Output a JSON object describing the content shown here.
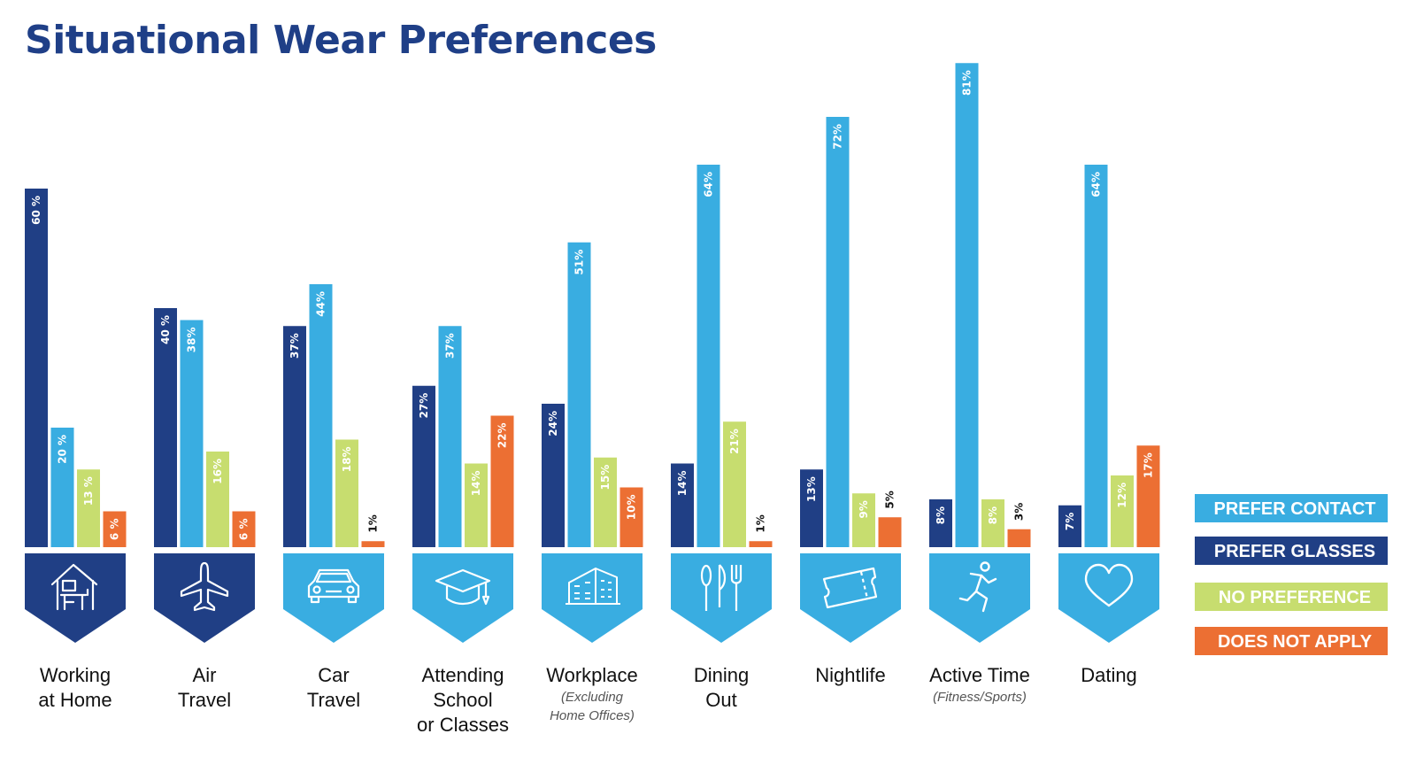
{
  "title": "Situational Wear Preferences",
  "colors": {
    "prefer_contact": "#39ade1",
    "prefer_glasses": "#203f85",
    "no_preference": "#c7dd6f",
    "does_not_apply": "#ec6f33",
    "title": "#1f3f87"
  },
  "legend": [
    {
      "label": "PREFER CONTACT",
      "color": "#39ade1",
      "series": "prefer_contact"
    },
    {
      "label": "PREFER GLASSES",
      "color": "#203f85",
      "series": "prefer_glasses"
    },
    {
      "label": "NO PREFERENCE",
      "color": "#c7dd6f",
      "series": "no_preference"
    },
    {
      "label": "DOES NOT APPLY",
      "color": "#ec6f33",
      "series": "does_not_apply"
    }
  ],
  "chart_data": {
    "type": "bar",
    "title": "Situational Wear Preferences",
    "legend_position": "right",
    "grid": false,
    "ylim": [
      0,
      81
    ],
    "series_order": [
      "prefer_glasses",
      "prefer_contact",
      "no_preference",
      "does_not_apply"
    ],
    "categories": [
      {
        "lines": [
          "Working",
          "at Home"
        ],
        "sub": [],
        "icon": "home-office-icon",
        "icon_color": "#203f85",
        "values": {
          "prefer_glasses": 60,
          "prefer_contact": 20,
          "no_preference": 13,
          "does_not_apply": 6
        },
        "labels": {
          "prefer_glasses": "60 %",
          "prefer_contact": "20 %",
          "no_preference": "13 %",
          "does_not_apply": "6 %"
        }
      },
      {
        "lines": [
          "Air",
          "Travel"
        ],
        "sub": [],
        "icon": "airplane-icon",
        "icon_color": "#203f85",
        "values": {
          "prefer_glasses": 40,
          "prefer_contact": 38,
          "no_preference": 16,
          "does_not_apply": 6
        },
        "labels": {
          "prefer_glasses": "40 %",
          "prefer_contact": "38%",
          "no_preference": "16%",
          "does_not_apply": "6 %"
        }
      },
      {
        "lines": [
          "Car",
          "Travel"
        ],
        "sub": [],
        "icon": "car-icon",
        "icon_color": "#39ade1",
        "values": {
          "prefer_glasses": 37,
          "prefer_contact": 44,
          "no_preference": 18,
          "does_not_apply": 1
        },
        "labels": {
          "prefer_glasses": "37%",
          "prefer_contact": "44%",
          "no_preference": "18%",
          "does_not_apply": "1%"
        }
      },
      {
        "lines": [
          "Attending",
          "School",
          "or Classes"
        ],
        "sub": [],
        "icon": "graduation-cap-icon",
        "icon_color": "#39ade1",
        "values": {
          "prefer_glasses": 27,
          "prefer_contact": 37,
          "no_preference": 14,
          "does_not_apply": 22
        },
        "labels": {
          "prefer_glasses": "27%",
          "prefer_contact": "37%",
          "no_preference": "14%",
          "does_not_apply": "22%"
        }
      },
      {
        "lines": [
          "Workplace"
        ],
        "sub": [
          "(Excluding",
          "Home Offices)"
        ],
        "icon": "office-building-icon",
        "icon_color": "#39ade1",
        "values": {
          "prefer_glasses": 24,
          "prefer_contact": 51,
          "no_preference": 15,
          "does_not_apply": 10
        },
        "labels": {
          "prefer_glasses": "24%",
          "prefer_contact": "51%",
          "no_preference": "15%",
          "does_not_apply": "10%"
        }
      },
      {
        "lines": [
          "Dining",
          "Out"
        ],
        "sub": [],
        "icon": "cutlery-icon",
        "icon_color": "#39ade1",
        "values": {
          "prefer_glasses": 14,
          "prefer_contact": 64,
          "no_preference": 21,
          "does_not_apply": 1
        },
        "labels": {
          "prefer_glasses": "14%",
          "prefer_contact": "64%",
          "no_preference": "21%",
          "does_not_apply": "1%"
        }
      },
      {
        "lines": [
          "Nightlife"
        ],
        "sub": [],
        "icon": "ticket-icon",
        "icon_color": "#39ade1",
        "values": {
          "prefer_glasses": 13,
          "prefer_contact": 72,
          "no_preference": 9,
          "does_not_apply": 5
        },
        "labels": {
          "prefer_glasses": "13%",
          "prefer_contact": "72%",
          "no_preference": "9%",
          "does_not_apply": "5%"
        }
      },
      {
        "lines": [
          "Active Time"
        ],
        "sub": [
          "(Fitness/Sports)"
        ],
        "icon": "running-person-icon",
        "icon_color": "#39ade1",
        "values": {
          "prefer_glasses": 8,
          "prefer_contact": 81,
          "no_preference": 8,
          "does_not_apply": 3
        },
        "labels": {
          "prefer_glasses": "8%",
          "prefer_contact": "81%",
          "no_preference": "8%",
          "does_not_apply": "3%"
        }
      },
      {
        "lines": [
          "Dating"
        ],
        "sub": [],
        "icon": "heart-icon",
        "icon_color": "#39ade1",
        "values": {
          "prefer_glasses": 7,
          "prefer_contact": 64,
          "no_preference": 12,
          "does_not_apply": 17
        },
        "labels": {
          "prefer_glasses": "7%",
          "prefer_contact": "64%",
          "no_preference": "12%",
          "does_not_apply": "17%"
        }
      }
    ]
  }
}
